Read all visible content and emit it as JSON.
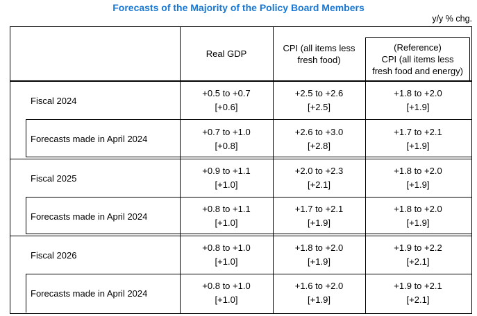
{
  "title": "Forecasts of the Majority of the Policy Board Members",
  "unit_note": "y/y % chg.",
  "colors": {
    "title_blue": "#1777D2",
    "text": "#000000",
    "border": "#000000",
    "background": "#FFFFFF"
  },
  "table": {
    "header": {
      "gdp": "Real GDP",
      "cpi_line1": "CPI (all items less",
      "cpi_line2": "fresh food)",
      "ref_line1": "(Reference)",
      "ref_line2": "CPI (all items less",
      "ref_line3": "fresh food and energy)"
    },
    "blocks": [
      {
        "fiscal": {
          "label": "Fiscal 2024",
          "gdp_range": "+0.5 to +0.7",
          "gdp_median": "[+0.6]",
          "cpi_range": "+2.5 to +2.6",
          "cpi_median": "[+2.5]",
          "ref_range": "+1.8 to +2.0",
          "ref_median": "[+1.9]"
        },
        "april": {
          "label": "Forecasts made in April 2024",
          "gdp_range": "+0.7 to +1.0",
          "gdp_median": "[+0.8]",
          "cpi_range": "+2.6 to +3.0",
          "cpi_median": "[+2.8]",
          "ref_range": "+1.7 to +2.1",
          "ref_median": "[+1.9]"
        }
      },
      {
        "fiscal": {
          "label": "Fiscal 2025",
          "gdp_range": "+0.9 to +1.1",
          "gdp_median": "[+1.0]",
          "cpi_range": "+2.0 to +2.3",
          "cpi_median": "[+2.1]",
          "ref_range": "+1.8 to +2.0",
          "ref_median": "[+1.9]"
        },
        "april": {
          "label": "Forecasts made in April 2024",
          "gdp_range": "+0.8 to +1.1",
          "gdp_median": "[+1.0]",
          "cpi_range": "+1.7 to +2.1",
          "cpi_median": "[+1.9]",
          "ref_range": "+1.8 to +2.0",
          "ref_median": "[+1.9]"
        }
      },
      {
        "fiscal": {
          "label": "Fiscal 2026",
          "gdp_range": "+0.8 to +1.0",
          "gdp_median": "[+1.0]",
          "cpi_range": "+1.8 to +2.0",
          "cpi_median": "[+1.9]",
          "ref_range": "+1.9 to +2.2",
          "ref_median": "[+2.1]"
        },
        "april": {
          "label": "Forecasts made in April 2024",
          "gdp_range": "+0.8 to +1.0",
          "gdp_median": "[+1.0]",
          "cpi_range": "+1.6 to +2.0",
          "cpi_median": "[+1.9]",
          "ref_range": "+1.9 to +2.1",
          "ref_median": "[+2.1]"
        }
      }
    ]
  }
}
